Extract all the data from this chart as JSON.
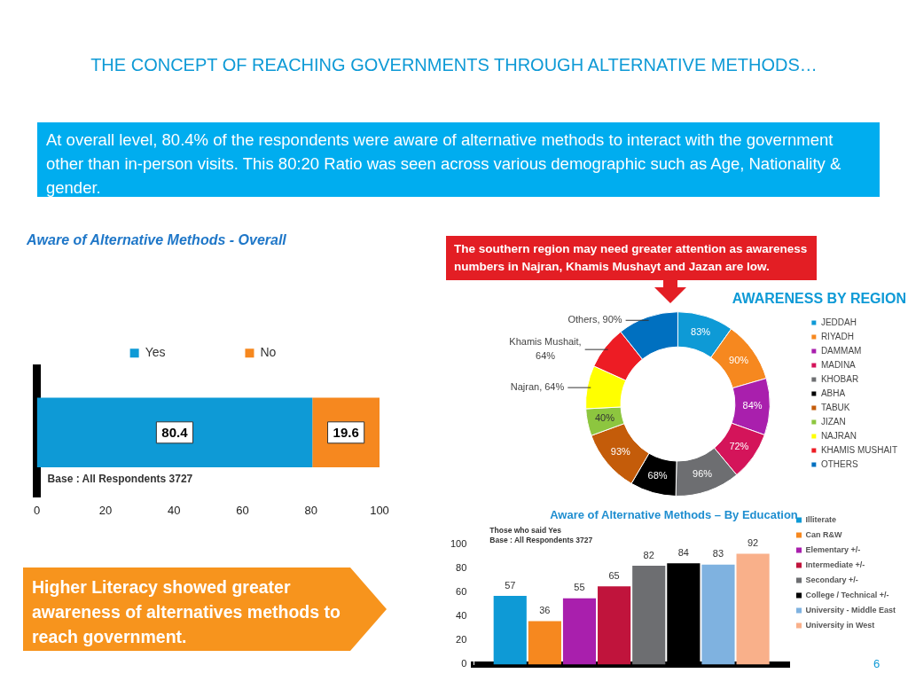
{
  "chart_data": [
    {
      "type": "other",
      "title": "THE CONCEPT OF REACHING GOVERNMENTS THROUGH ALTERNATIVE METHODS…",
      "annotations": [
        "At overall level, 80.4% of the respondents were aware of alternative methods to interact with the government other than in-person visits. This 80:20 Ratio was seen across various demographic  such as Age, Nationality & gender.",
        "Higher Literacy showed greater awareness of alternatives methods to reach government.",
        "6"
      ]
    },
    {
      "type": "bar",
      "orientation": "horizontal",
      "stacked": true,
      "title": "Aware of Alternative Methods - Overall",
      "categories": [
        null
      ],
      "series": [
        {
          "name": "Yes",
          "color": "#0e9ad6",
          "values": [
            80.4
          ]
        },
        {
          "name": "No",
          "color": "#f6881f",
          "values": [
            19.6
          ]
        }
      ],
      "xlim": [
        0,
        100
      ],
      "xticks": [
        0,
        20,
        40,
        60,
        80,
        100
      ],
      "tick_labels": "x",
      "legend": "top",
      "data_labels": true,
      "grid": false,
      "annotations": [
        "Base : All Respondents 3727"
      ]
    },
    {
      "type": "donut",
      "title": "AWARENESS BY REGION",
      "categories": [
        "JEDDAH",
        "RIYADH",
        "DAMMAM",
        "MADINA",
        "KHOBAR",
        "ABHA",
        "TABUK",
        "JIZAN",
        "NAJRAN",
        "KHAMIS MUSHAIT",
        "OTHERS"
      ],
      "values": [
        83,
        90,
        84,
        72,
        96,
        68,
        93,
        40,
        64,
        64,
        90
      ],
      "colors": [
        "#0e9ad6",
        "#f6881f",
        "#a91fad",
        "#d4145a",
        "#6d6e71",
        "#000000",
        "#c45c0a",
        "#8dc63f",
        "#ffff00",
        "#ed1c24",
        "#0070c0"
      ],
      "value_labels": [
        "83%",
        "90%",
        "84%",
        "72%",
        "96%",
        "68%",
        "93%",
        "40%",
        "Najran, 64%",
        "Khamis Mushait, 64%",
        "Others, 90%"
      ],
      "legend": "right",
      "annotations": [
        "The southern region may need greater attention as awareness numbers in Najran, Khamis Mushayt and Jazan are low."
      ]
    },
    {
      "type": "bar",
      "title": "Aware of Alternative Methods – By Education",
      "categories": [
        null
      ],
      "series": [
        {
          "name": "Illiterate",
          "color": "#0e9ad6",
          "values": [
            57
          ]
        },
        {
          "name": "Can R&W",
          "color": "#f6881f",
          "values": [
            36
          ]
        },
        {
          "name": "Elementary +/-",
          "color": "#a91fad",
          "values": [
            55
          ]
        },
        {
          "name": "Intermediate +/-",
          "color": "#c0143c",
          "values": [
            65
          ]
        },
        {
          "name": "Secondary +/-",
          "color": "#6d6e71",
          "values": [
            82
          ]
        },
        {
          "name": "College / Technical +/-",
          "color": "#000000",
          "values": [
            84
          ]
        },
        {
          "name": "University - Middle East",
          "color": "#7fb2e0",
          "values": [
            83
          ]
        },
        {
          "name": "University in West",
          "color": "#f9b08a",
          "values": [
            92
          ]
        }
      ],
      "ylim": [
        0,
        100
      ],
      "yticks": [
        0,
        20,
        40,
        60,
        80,
        100
      ],
      "tick_labels": "y",
      "data_labels": true,
      "legend": "right",
      "grid": false,
      "annotations": [
        "Those who said Yes",
        "Base : All Respondents 3727"
      ]
    }
  ]
}
